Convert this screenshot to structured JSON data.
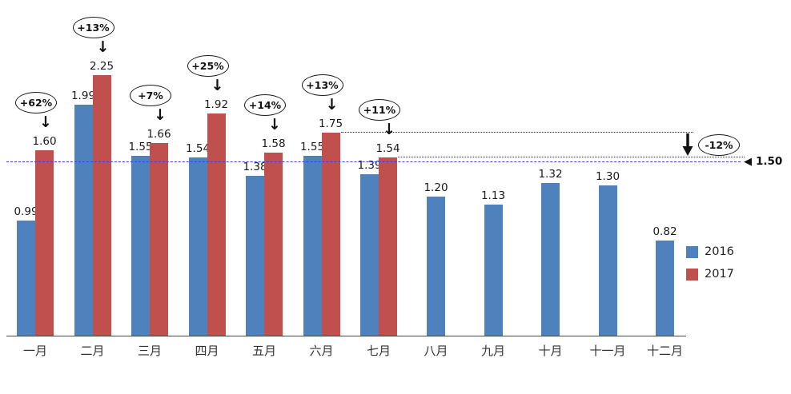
{
  "chart_data": {
    "type": "bar",
    "title": "",
    "categories": [
      "一月",
      "二月",
      "三月",
      "四月",
      "五月",
      "六月",
      "七月",
      "八月",
      "九月",
      "十月",
      "十一月",
      "十二月"
    ],
    "series": [
      {
        "name": "2016",
        "color": "#4F81BD",
        "values": [
          0.99,
          1.99,
          1.55,
          1.54,
          1.38,
          1.55,
          1.39,
          1.2,
          1.13,
          1.32,
          1.3,
          0.82
        ]
      },
      {
        "name": "2017",
        "color": "#C0504D",
        "values": [
          1.6,
          2.25,
          1.66,
          1.92,
          1.58,
          1.75,
          1.54,
          null,
          null,
          null,
          null,
          null
        ]
      }
    ],
    "pct_change_labels": [
      "+62%",
      "+13%",
      "+7%",
      "+25%",
      "+14%",
      "+13%",
      "+11%"
    ],
    "reference_line": {
      "value": 1.5,
      "label": "1.50",
      "color": "#3a3af0",
      "style": "dashed"
    },
    "decline_annotation": {
      "label": "-12%",
      "from": 1.75,
      "to": 1.54,
      "style": "dotted"
    },
    "ylim": [
      0,
      2.4
    ],
    "grid": false,
    "legend_position": "right",
    "legend": [
      "2016",
      "2017"
    ]
  },
  "icons": {
    "left_triangle": "◀",
    "down_arrow": "↓"
  }
}
